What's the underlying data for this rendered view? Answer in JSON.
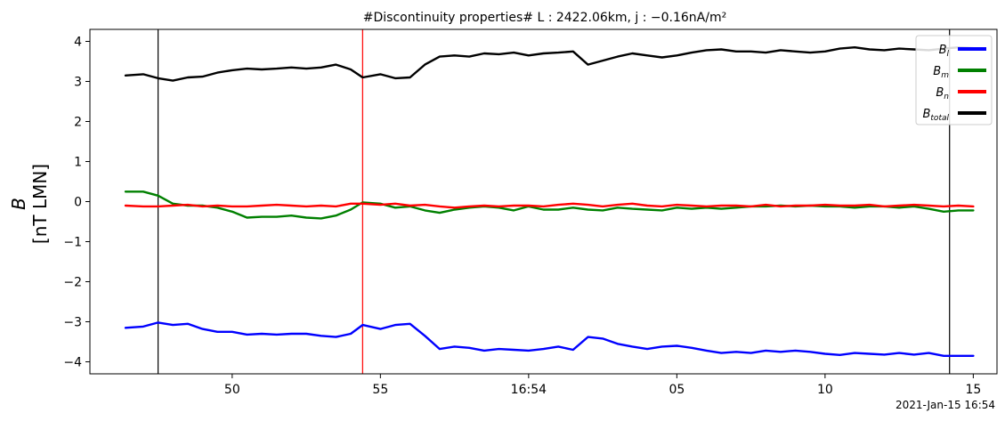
{
  "chart_data": {
    "type": "line",
    "title": "#Discontinuity properties# L : 2422.06km, j : −0.16nA/m²",
    "ylabel_main": "B",
    "ylabel_unit": "[nT LMN]",
    "x_time_label": "2021-Jan-15 16:54",
    "x_units": "minute index (tick labels as printed)",
    "xlim": [
      45.2,
      15.8
    ],
    "ylim": [
      -4.3,
      4.3
    ],
    "grid": false,
    "legend_placement": "top-right",
    "yticks": [
      {
        "value": 4,
        "label": "4"
      },
      {
        "value": 3,
        "label": "3"
      },
      {
        "value": 2,
        "label": "2"
      },
      {
        "value": 1,
        "label": "1"
      },
      {
        "value": 0,
        "label": "0"
      },
      {
        "value": -1,
        "label": "−1"
      },
      {
        "value": -2,
        "label": "−2"
      },
      {
        "value": -3,
        "label": "−3"
      },
      {
        "value": -4,
        "label": "−4"
      }
    ],
    "xticks": [
      {
        "t": 50,
        "label": "50"
      },
      {
        "t": 55,
        "label": "55"
      },
      {
        "t": 60,
        "label": "16:54"
      },
      {
        "t": 65,
        "label": "05"
      },
      {
        "t": 70,
        "label": "10"
      },
      {
        "t": 75,
        "label": "15"
      }
    ],
    "t_range": [
      45.2,
      75.8
    ],
    "vlines": [
      {
        "t": 47.5,
        "color": "#000000"
      },
      {
        "t": 54.4,
        "color": "#ff0000"
      },
      {
        "t": 74.2,
        "color": "#000000"
      }
    ],
    "x": [
      46.4,
      47.0,
      47.5,
      48.0,
      48.5,
      49.0,
      49.5,
      50.0,
      50.5,
      51.0,
      51.5,
      52.0,
      52.5,
      53.0,
      53.5,
      54.0,
      54.4,
      55.0,
      55.5,
      56.0,
      56.5,
      57.0,
      57.5,
      58.0,
      58.5,
      59.0,
      59.5,
      60.0,
      60.5,
      61.0,
      61.5,
      62.0,
      62.5,
      63.0,
      63.5,
      64.0,
      64.5,
      65.0,
      65.5,
      66.0,
      66.5,
      67.0,
      67.5,
      68.0,
      68.5,
      69.0,
      69.5,
      70.0,
      70.5,
      71.0,
      71.5,
      72.0,
      72.5,
      73.0,
      73.5,
      74.0,
      74.5,
      75.0
    ],
    "series": [
      {
        "name": "B_l",
        "label_main": "B",
        "label_sub": "l",
        "color": "#0000ff",
        "values": [
          -3.15,
          -3.12,
          -3.02,
          -3.08,
          -3.05,
          -3.18,
          -3.25,
          -3.25,
          -3.32,
          -3.3,
          -3.32,
          -3.3,
          -3.3,
          -3.35,
          -3.38,
          -3.3,
          -3.08,
          -3.18,
          -3.08,
          -3.05,
          -3.35,
          -3.68,
          -3.62,
          -3.65,
          -3.72,
          -3.68,
          -3.7,
          -3.72,
          -3.68,
          -3.62,
          -3.7,
          -3.38,
          -3.42,
          -3.55,
          -3.62,
          -3.68,
          -3.62,
          -3.6,
          -3.65,
          -3.72,
          -3.78,
          -3.75,
          -3.78,
          -3.72,
          -3.75,
          -3.72,
          -3.75,
          -3.8,
          -3.83,
          -3.78,
          -3.8,
          -3.82,
          -3.78,
          -3.82,
          -3.78,
          -3.85,
          -3.85,
          -3.85
        ]
      },
      {
        "name": "B_m",
        "label_main": "B",
        "label_sub": "m",
        "color": "#008000",
        "values": [
          0.25,
          0.25,
          0.15,
          -0.05,
          -0.1,
          -0.1,
          -0.15,
          -0.25,
          -0.4,
          -0.38,
          -0.38,
          -0.35,
          -0.4,
          -0.42,
          -0.35,
          -0.2,
          -0.02,
          -0.05,
          -0.15,
          -0.12,
          -0.22,
          -0.28,
          -0.2,
          -0.15,
          -0.12,
          -0.15,
          -0.22,
          -0.12,
          -0.2,
          -0.2,
          -0.15,
          -0.2,
          -0.22,
          -0.15,
          -0.18,
          -0.2,
          -0.22,
          -0.15,
          -0.18,
          -0.15,
          -0.18,
          -0.15,
          -0.12,
          -0.12,
          -0.1,
          -0.12,
          -0.1,
          -0.12,
          -0.12,
          -0.15,
          -0.12,
          -0.12,
          -0.15,
          -0.12,
          -0.18,
          -0.25,
          -0.22,
          -0.22
        ]
      },
      {
        "name": "B_n",
        "label_main": "B",
        "label_sub": "n",
        "color": "#ff0000",
        "values": [
          -0.1,
          -0.12,
          -0.12,
          -0.1,
          -0.08,
          -0.12,
          -0.1,
          -0.12,
          -0.12,
          -0.1,
          -0.08,
          -0.1,
          -0.12,
          -0.1,
          -0.12,
          -0.05,
          -0.05,
          -0.08,
          -0.05,
          -0.1,
          -0.08,
          -0.12,
          -0.15,
          -0.12,
          -0.1,
          -0.12,
          -0.1,
          -0.1,
          -0.12,
          -0.08,
          -0.05,
          -0.08,
          -0.12,
          -0.08,
          -0.05,
          -0.1,
          -0.12,
          -0.08,
          -0.1,
          -0.12,
          -0.1,
          -0.1,
          -0.12,
          -0.08,
          -0.12,
          -0.1,
          -0.1,
          -0.08,
          -0.1,
          -0.1,
          -0.08,
          -0.12,
          -0.1,
          -0.08,
          -0.1,
          -0.12,
          -0.1,
          -0.12
        ]
      },
      {
        "name": "B_total",
        "label_main": "B",
        "label_sub": "total",
        "color": "#000000",
        "values": [
          3.15,
          3.18,
          3.08,
          3.02,
          3.1,
          3.12,
          3.22,
          3.28,
          3.32,
          3.3,
          3.32,
          3.35,
          3.32,
          3.35,
          3.42,
          3.3,
          3.1,
          3.18,
          3.08,
          3.1,
          3.42,
          3.62,
          3.65,
          3.62,
          3.7,
          3.68,
          3.72,
          3.65,
          3.7,
          3.72,
          3.75,
          3.42,
          3.52,
          3.62,
          3.7,
          3.65,
          3.6,
          3.65,
          3.72,
          3.78,
          3.8,
          3.75,
          3.75,
          3.72,
          3.78,
          3.75,
          3.72,
          3.75,
          3.82,
          3.85,
          3.8,
          3.78,
          3.82,
          3.8,
          3.78,
          3.82,
          3.85,
          3.83
        ]
      }
    ]
  }
}
